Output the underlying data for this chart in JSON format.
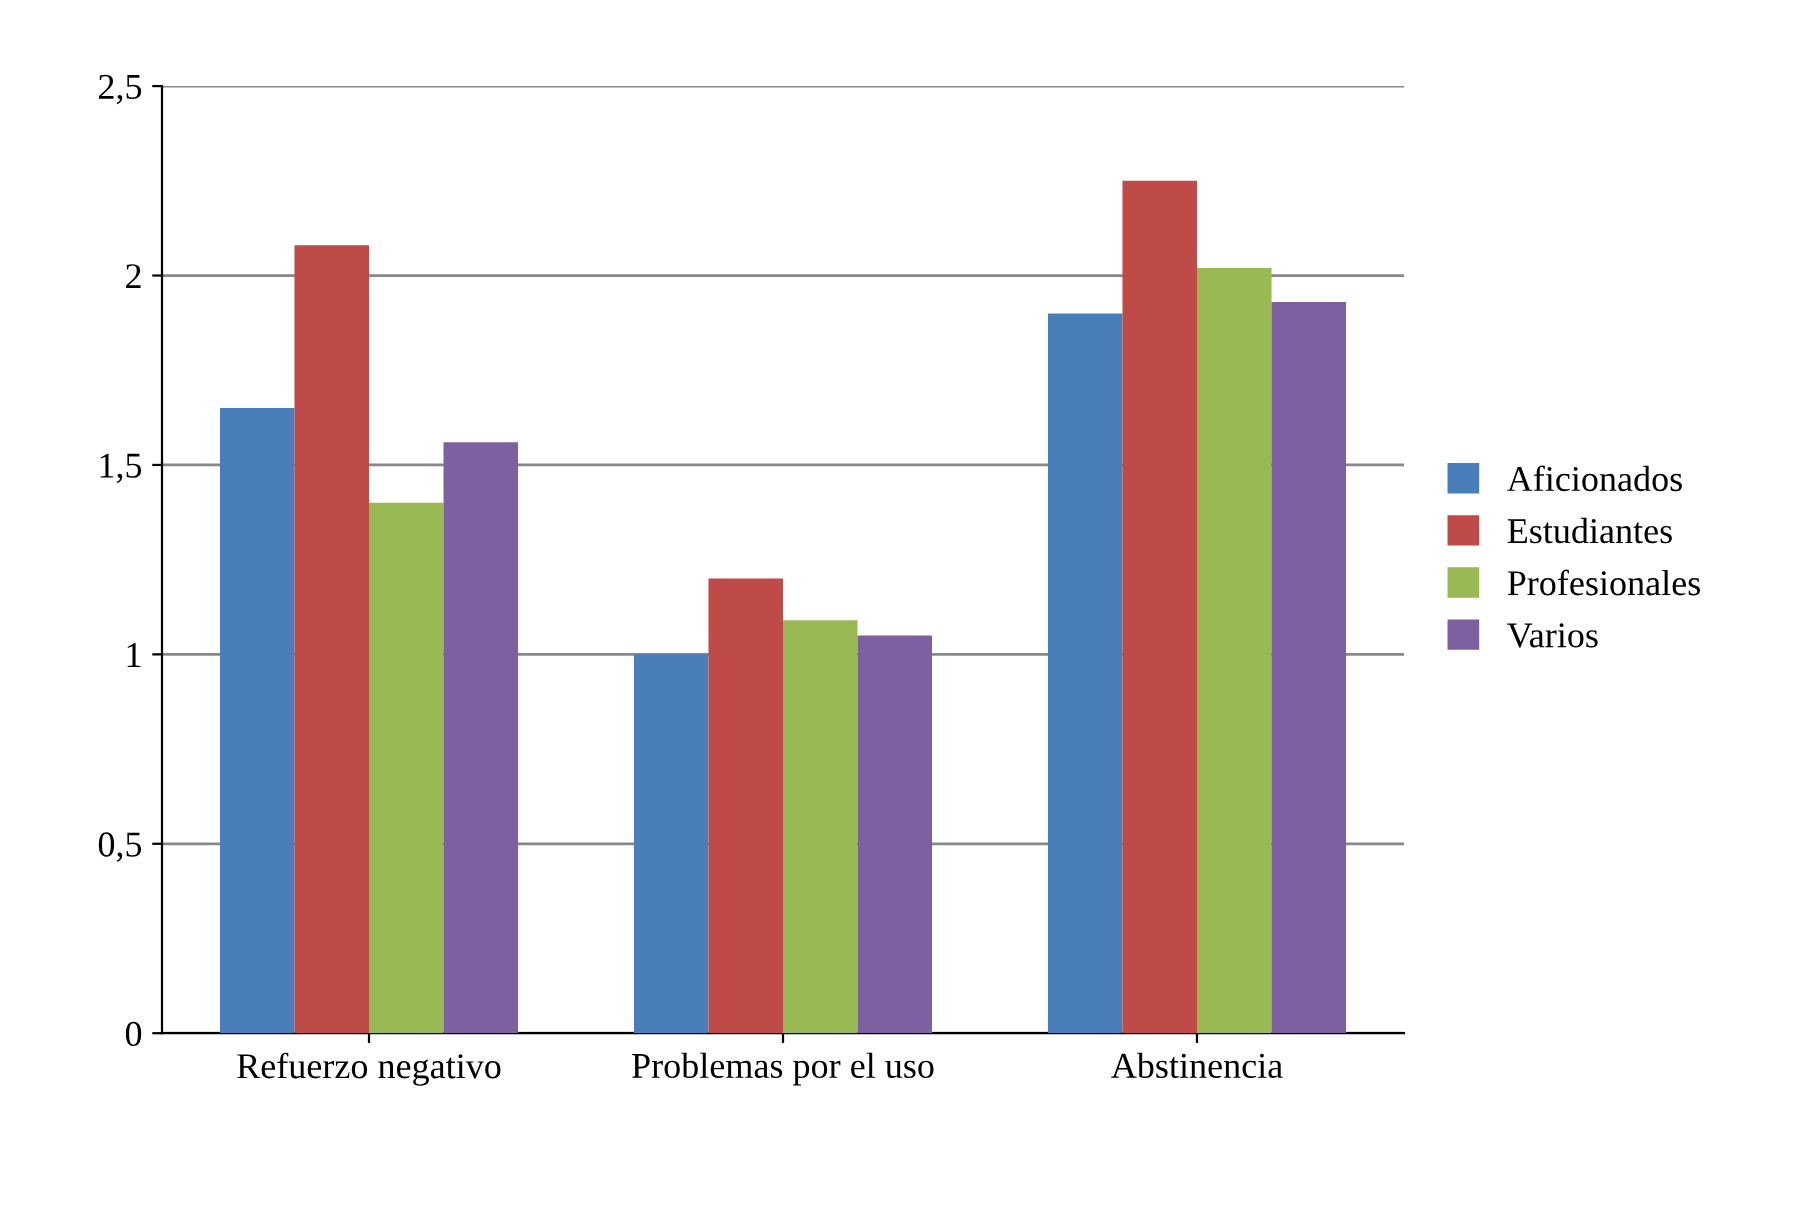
{
  "chart_data": {
    "type": "bar",
    "categories": [
      "Refuerzo negativo",
      "Problemas por el uso",
      "Abstinencia"
    ],
    "series": [
      {
        "name": "Aficionados",
        "color": "#4a7ebb",
        "values": [
          1.65,
          1.0,
          1.9
        ]
      },
      {
        "name": "Estudiantes",
        "color": "#be4b48",
        "values": [
          2.08,
          1.2,
          2.25
        ]
      },
      {
        "name": "Profesionales",
        "color": "#98b954",
        "values": [
          1.4,
          1.09,
          2.02
        ]
      },
      {
        "name": "Varios",
        "color": "#7d60a0",
        "values": [
          1.56,
          1.05,
          1.93
        ]
      }
    ],
    "ylim": [
      0,
      2.5
    ],
    "yticks": [
      0,
      {
        "value": 0.5,
        "label": "0,5"
      },
      1,
      {
        "value": 1.5,
        "label": "1,5"
      },
      2,
      {
        "value": 2.5,
        "label": "2,5"
      }
    ],
    "grid": "y",
    "legend": "right"
  }
}
